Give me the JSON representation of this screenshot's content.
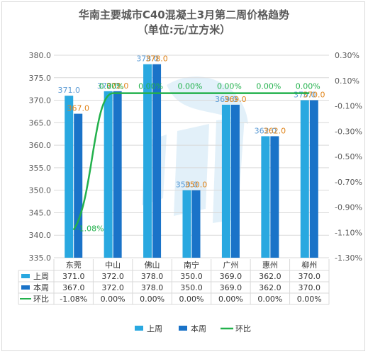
{
  "title_line1": "华南主要城市C40混凝土3月第二周价格趋势",
  "title_line2": "（单位:元/立方米）",
  "colors": {
    "last_week": "#29a8e0",
    "this_week": "#1a73c8",
    "ratio": "#22b14c",
    "last_week_label": "#5b9bd5",
    "this_week_label": "#e0841a",
    "ratio_label": "#22b14c",
    "axis_text": "#595959",
    "grid": "#d9d9d9"
  },
  "chart_data": {
    "type": "bar",
    "categories": [
      "东莞",
      "中山",
      "佛山",
      "南宁",
      "广州",
      "惠州",
      "柳州"
    ],
    "series": [
      {
        "name": "上周",
        "values": [
          371.0,
          372.0,
          378.0,
          350.0,
          369.0,
          362.0,
          370.0
        ],
        "axis": "left"
      },
      {
        "name": "本周",
        "values": [
          367.0,
          372.0,
          378.0,
          350.0,
          369.0,
          362.0,
          370.0
        ],
        "axis": "left"
      },
      {
        "name": "环比",
        "type": "line",
        "values": [
          -1.08,
          0.0,
          0.0,
          0.0,
          0.0,
          0.0,
          0.0
        ],
        "axis": "right",
        "unit": "%"
      }
    ],
    "left_axis": {
      "min": 335,
      "max": 380,
      "step": 5,
      "ticks": [
        "335.0",
        "340.0",
        "345.0",
        "350.0",
        "355.0",
        "360.0",
        "365.0",
        "370.0",
        "375.0",
        "380.0"
      ]
    },
    "right_axis": {
      "min": -1.3,
      "max": 0.3,
      "step": 0.2,
      "ticks": [
        "-1.30%",
        "-1.10%",
        "-0.90%",
        "-0.70%",
        "-0.50%",
        "-0.30%",
        "-0.10%",
        "0.10%",
        "0.30%"
      ]
    },
    "bar_labels": {
      "last_week": [
        "371.0",
        "372.0",
        "378.0",
        "350.0",
        "369.0",
        "362.0",
        "370.0"
      ],
      "this_week": [
        "367.0",
        "372.0",
        "378.0",
        "350.0",
        "369.0",
        "362.0",
        "370.0"
      ],
      "ratio": [
        "-1.08%",
        "0.00%",
        "0.00%",
        "0.00%",
        "0.00%",
        "0.00%",
        "0.00%"
      ]
    },
    "table": {
      "rows": [
        {
          "label": "上周",
          "cells": [
            "371.0",
            "372.0",
            "378.0",
            "350.0",
            "369.0",
            "362.0",
            "370.0"
          ]
        },
        {
          "label": "本周",
          "cells": [
            "367.0",
            "372.0",
            "378.0",
            "350.0",
            "369.0",
            "362.0",
            "370.0"
          ]
        },
        {
          "label": "环比",
          "cells": [
            "-1.08%",
            "0.00%",
            "0.00%",
            "0.00%",
            "0.00%",
            "0.00%",
            "0.00%"
          ]
        }
      ]
    },
    "legend": [
      "上周",
      "本周",
      "环比"
    ],
    "legend_position": "bottom",
    "grid": true
  }
}
